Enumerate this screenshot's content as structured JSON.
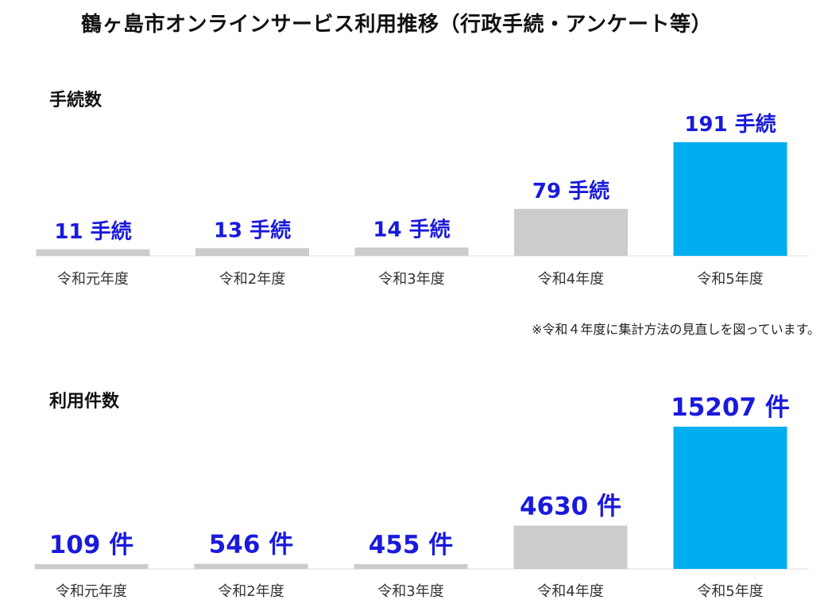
{
  "title": "鶴ヶ島市オンラインサービス利用推移（行政手続・アンケート等）",
  "note": "※令和４年度に集計方法の見直しを図っています。",
  "colors": {
    "normal": "#cdcccc",
    "highlight": "#00aeef",
    "label": "#1a1adb"
  },
  "chart_data": [
    {
      "type": "bar",
      "title": "手続数",
      "categories": [
        "令和元年度",
        "令和2年度",
        "令和3年度",
        "令和4年度",
        "令和5年度"
      ],
      "values": [
        11,
        13,
        14,
        79,
        191
      ],
      "value_labels": [
        "11 手続",
        "13 手続",
        "14 手続",
        "79 手続",
        "191 手続"
      ],
      "highlight_index": 4,
      "xlabel": "",
      "ylabel": "",
      "ylim": [
        0,
        191
      ],
      "grid": false
    },
    {
      "type": "bar",
      "title": "利用件数",
      "categories": [
        "令和元年度",
        "令和2年度",
        "令和3年度",
        "令和4年度",
        "令和5年度"
      ],
      "values": [
        109,
        546,
        455,
        4630,
        15207
      ],
      "value_labels": [
        "109 件",
        "546 件",
        "455 件",
        "4630 件",
        "15207 件"
      ],
      "highlight_index": 4,
      "xlabel": "",
      "ylabel": "",
      "ylim": [
        0,
        15207
      ],
      "grid": false
    }
  ]
}
